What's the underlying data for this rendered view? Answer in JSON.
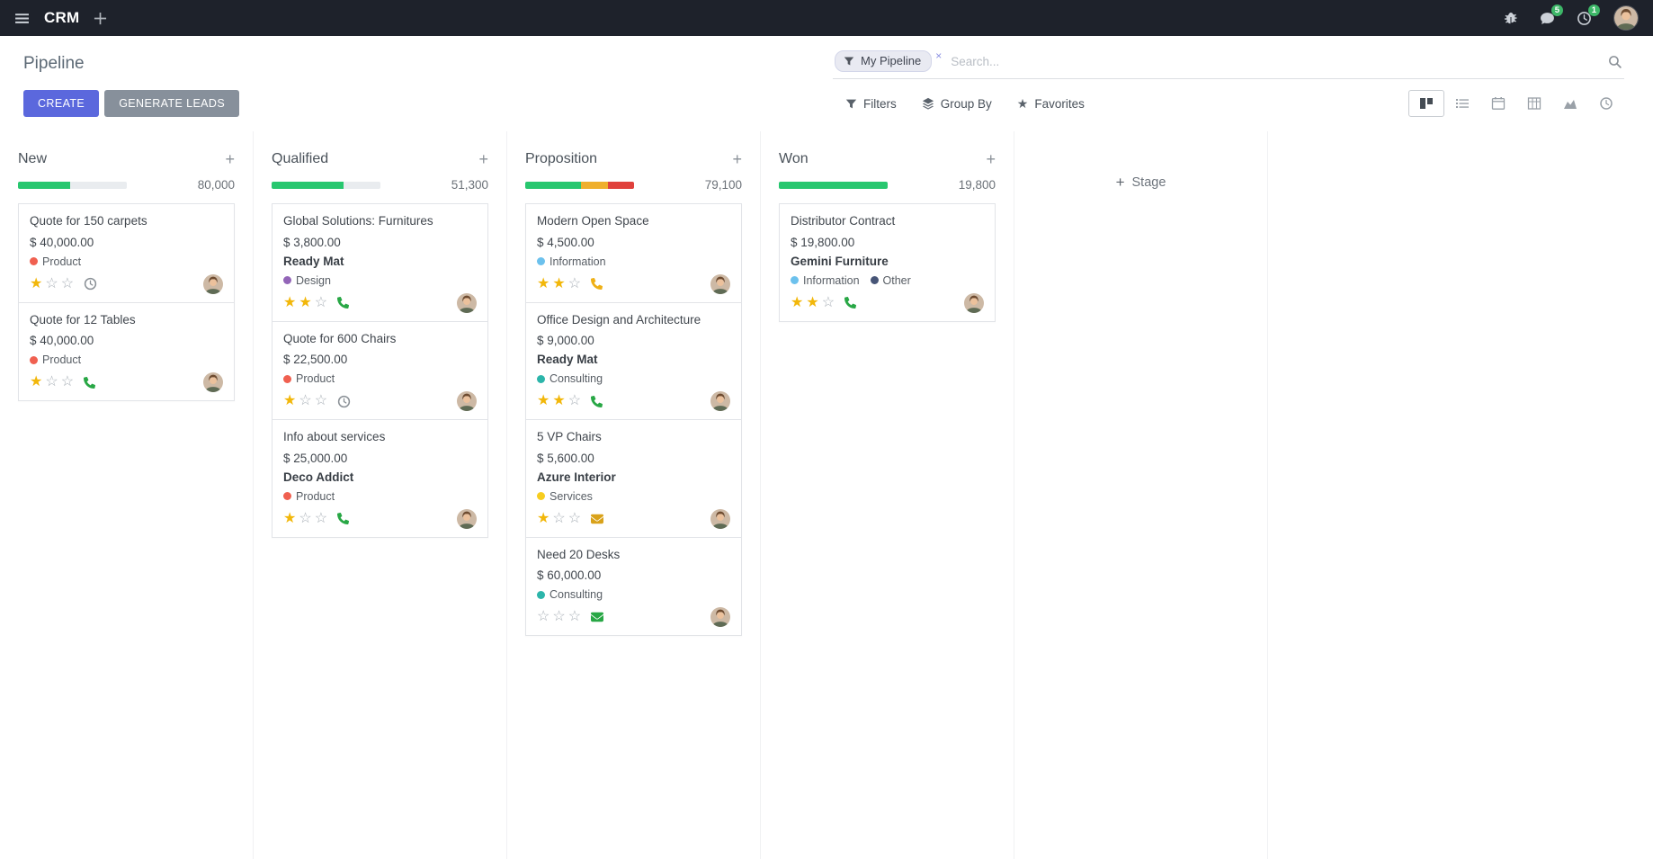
{
  "colors": {
    "topbar_bg": "#1e222b",
    "accent": "#5b68dd",
    "secondary_btn": "#87909b",
    "star_gold": "#f2b70a",
    "badge_green": "#3db768"
  },
  "icons": {
    "apps_menu": "hamburger",
    "new_record": "plus",
    "debug": "bug",
    "messages": "chat-bubble",
    "activities": "clock",
    "search": "magnifier",
    "filter_facet": "funnel",
    "filters": "funnel",
    "group_by": "layers",
    "favorites": "star",
    "view_kanban": "kanban-grid",
    "view_list": "list-lines",
    "view_calendar": "calendar",
    "view_pivot": "table-grid",
    "view_graph": "area-chart",
    "view_activity": "clock",
    "quick_add": "plus",
    "add_stage": "plus",
    "card_activities": [
      "clock",
      "phone",
      "envelope"
    ]
  },
  "topbar": {
    "app_name": "CRM",
    "messages_badge": "5",
    "activities_badge": "1"
  },
  "control_panel": {
    "title": "Pipeline",
    "search_facet": "My Pipeline",
    "search_placeholder": "Search...",
    "create_label": "CREATE",
    "generate_leads_label": "GENERATE LEADS",
    "filters_label": "Filters",
    "group_by_label": "Group By",
    "favorites_label": "Favorites",
    "active_view": "kanban"
  },
  "board": {
    "add_stage_label": "Stage",
    "columns": [
      {
        "name": "New",
        "total": "80,000",
        "progress": [
          {
            "color": "#28c76f",
            "pct": 48
          },
          {
            "color": "#e9ecef",
            "pct": 52
          }
        ],
        "cards": [
          {
            "title": "Quote for 150 carpets",
            "amount": "$ 40,000.00",
            "partner": "",
            "tags": [
              {
                "label": "Product",
                "color": "#f06050"
              }
            ],
            "stars_filled": 1,
            "activity": {
              "type": "clock",
              "color": "#8a9096"
            }
          },
          {
            "title": "Quote for 12 Tables",
            "amount": "$ 40,000.00",
            "partner": "",
            "tags": [
              {
                "label": "Product",
                "color": "#f06050"
              }
            ],
            "stars_filled": 1,
            "activity": {
              "type": "phone",
              "color": "#28a745"
            }
          }
        ]
      },
      {
        "name": "Qualified",
        "total": "51,300",
        "progress": [
          {
            "color": "#28c76f",
            "pct": 66
          },
          {
            "color": "#e9ecef",
            "pct": 34
          }
        ],
        "cards": [
          {
            "title": "Global Solutions: Furnitures",
            "amount": "$ 3,800.00",
            "partner": "Ready Mat",
            "tags": [
              {
                "label": "Design",
                "color": "#9365b8"
              }
            ],
            "stars_filled": 2,
            "activity": {
              "type": "phone",
              "color": "#28a745"
            }
          },
          {
            "title": "Quote for 600 Chairs",
            "amount": "$ 22,500.00",
            "partner": "",
            "tags": [
              {
                "label": "Product",
                "color": "#f06050"
              }
            ],
            "stars_filled": 1,
            "activity": {
              "type": "clock",
              "color": "#8a9096"
            }
          },
          {
            "title": "Info about services",
            "amount": "$ 25,000.00",
            "partner": "Deco Addict",
            "tags": [
              {
                "label": "Product",
                "color": "#f06050"
              }
            ],
            "stars_filled": 1,
            "activity": {
              "type": "phone",
              "color": "#28a745"
            }
          }
        ]
      },
      {
        "name": "Proposition",
        "total": "79,100",
        "progress": [
          {
            "color": "#28c76f",
            "pct": 51
          },
          {
            "color": "#efaf2c",
            "pct": 25
          },
          {
            "color": "#e0413c",
            "pct": 24
          }
        ],
        "cards": [
          {
            "title": "Modern Open Space",
            "amount": "$ 4,500.00",
            "partner": "",
            "tags": [
              {
                "label": "Information",
                "color": "#6cc1ed"
              }
            ],
            "stars_filled": 2,
            "activity": {
              "type": "phone",
              "color": "#efb016"
            }
          },
          {
            "title": "Office Design and Architecture",
            "amount": "$ 9,000.00",
            "partner": "Ready Mat",
            "tags": [
              {
                "label": "Consulting",
                "color": "#2cb5aa"
              }
            ],
            "stars_filled": 2,
            "activity": {
              "type": "phone",
              "color": "#28a745"
            }
          },
          {
            "title": "5 VP Chairs",
            "amount": "$ 5,600.00",
            "partner": "Azure Interior",
            "tags": [
              {
                "label": "Services",
                "color": "#f7cd1f"
              }
            ],
            "stars_filled": 1,
            "activity": {
              "type": "envelope",
              "color": "#d9a21a"
            }
          },
          {
            "title": "Need 20 Desks",
            "amount": "$ 60,000.00",
            "partner": "",
            "tags": [
              {
                "label": "Consulting",
                "color": "#2cb5aa"
              }
            ],
            "stars_filled": 0,
            "activity": {
              "type": "envelope",
              "color": "#28a745"
            }
          }
        ]
      },
      {
        "name": "Won",
        "total": "19,800",
        "progress": [
          {
            "color": "#28c76f",
            "pct": 100
          }
        ],
        "cards": [
          {
            "title": "Distributor Contract",
            "amount": "$ 19,800.00",
            "partner": "Gemini Furniture",
            "tags": [
              {
                "label": "Information",
                "color": "#6cc1ed"
              },
              {
                "label": "Other",
                "color": "#475577"
              }
            ],
            "stars_filled": 2,
            "activity": {
              "type": "phone",
              "color": "#28a745"
            }
          }
        ]
      }
    ]
  }
}
